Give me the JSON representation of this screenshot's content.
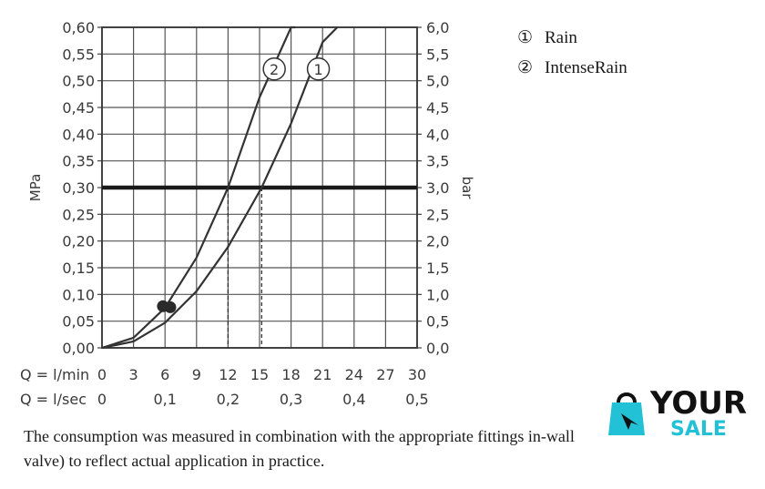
{
  "chart_data": {
    "type": "line",
    "y_left": {
      "label": "MPa",
      "range": [
        0,
        0.6
      ],
      "ticks": [
        "0,00",
        "0,05",
        "0,10",
        "0,15",
        "0,20",
        "0,25",
        "0,30",
        "0,35",
        "0,40",
        "0,45",
        "0,50",
        "0,55",
        "0,60"
      ]
    },
    "y_right": {
      "label": "bar",
      "range": [
        0,
        6
      ],
      "ticks": [
        "0,0",
        "0,5",
        "1,0",
        "1,5",
        "2,0",
        "2,5",
        "3,0",
        "3,5",
        "4,0",
        "4,5",
        "5,0",
        "5,5",
        "6,0"
      ]
    },
    "x_primary": {
      "label": "Q = l/min",
      "range": [
        0,
        30
      ],
      "ticks": [
        "0",
        "3",
        "6",
        "9",
        "12",
        "15",
        "18",
        "21",
        "24",
        "27",
        "30"
      ]
    },
    "x_secondary": {
      "label": "Q = l/sec",
      "ticks": [
        {
          "value": 0,
          "label": "0"
        },
        {
          "value": 6,
          "label": "0,1"
        },
        {
          "value": 12,
          "label": "0,2"
        },
        {
          "value": 18,
          "label": "0,3"
        },
        {
          "value": 24,
          "label": "0,4"
        },
        {
          "value": 30,
          "label": "0,5"
        }
      ]
    },
    "grid": true,
    "reference_line": {
      "y": 0.3
    },
    "markers": [
      {
        "x": 15.2,
        "y": 0.3
      },
      {
        "x": 12.0,
        "y": 0.3
      }
    ],
    "points": [
      {
        "x": 5.8,
        "y": 0.078
      },
      {
        "x": 6.5,
        "y": 0.076
      }
    ],
    "series": [
      {
        "marker": "1",
        "x": [
          0,
          3,
          6,
          9,
          12,
          15.2,
          18,
          21,
          22.4
        ],
        "y": [
          0,
          0.012,
          0.047,
          0.106,
          0.189,
          0.3,
          0.42,
          0.572,
          0.6
        ]
      },
      {
        "marker": "2",
        "x": [
          0,
          3,
          6,
          9,
          12,
          15,
          18,
          18.4
        ],
        "y": [
          0,
          0.019,
          0.075,
          0.169,
          0.3,
          0.469,
          0.6,
          0.6
        ]
      }
    ],
    "legend": {
      "placement": "top-right",
      "entries": [
        {
          "symbol": "①",
          "label": "Rain"
        },
        {
          "symbol": "②",
          "label": "IntenseRain"
        }
      ]
    }
  },
  "caption": "The consumption was measured in combination with the appropriate fittings in-wall valve) to reflect actual application in practice.",
  "logo": {
    "word1": "YOUR",
    "word2": "SALE",
    "accent_color": "#22c1d6"
  }
}
